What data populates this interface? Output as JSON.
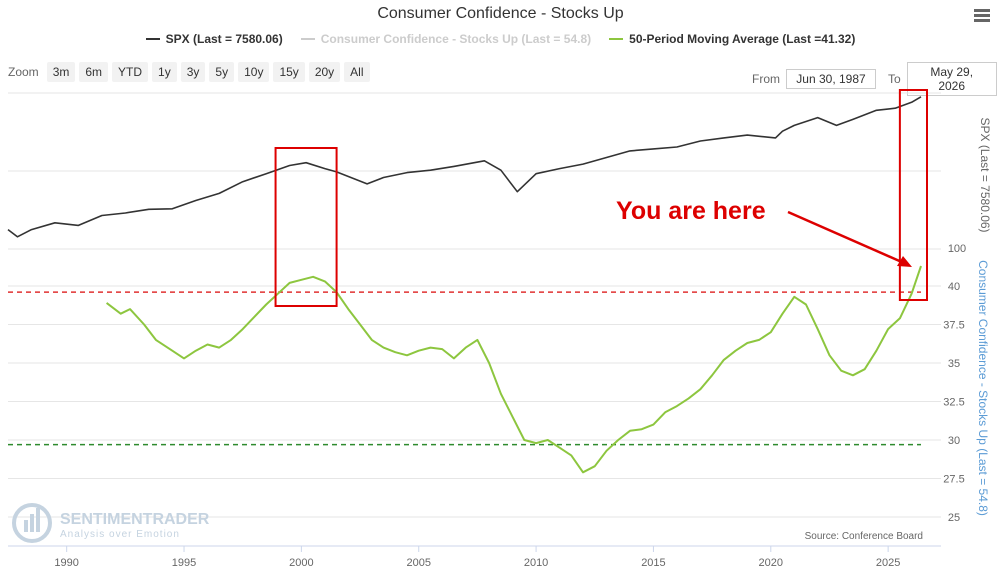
{
  "title": "Consumer Confidence - Stocks Up",
  "menu_icon": "hamburger-menu-icon",
  "legend": [
    {
      "label": "SPX (Last = 7580.06)",
      "color": "#333333",
      "visible": true
    },
    {
      "label": "Consumer Confidence - Stocks Up (Last = 54.8)",
      "color": "#cccccc",
      "visible": false
    },
    {
      "label": "50-Period Moving Average (Last =41.32)",
      "color": "#8dc63f",
      "visible": true
    }
  ],
  "zoom": {
    "label": "Zoom",
    "buttons": [
      "3m",
      "6m",
      "YTD",
      "1y",
      "3y",
      "5y",
      "10y",
      "15y",
      "20y",
      "All"
    ]
  },
  "range": {
    "from_label": "From",
    "from_value": "Jun 30, 1987",
    "to_label": "To",
    "to_value": "May 29, 2026"
  },
  "annotation": {
    "text": "You are here",
    "color": "#dd0000"
  },
  "watermark": {
    "name": "SENTIMENTRADER",
    "tagline": "Analysis over Emotion"
  },
  "source": "Source: Conference Board",
  "chart_data": {
    "type": "line",
    "x_axis": {
      "min": 1987.5,
      "max": 2026.4,
      "ticks": [
        "1990",
        "1995",
        "2000",
        "2005",
        "2010",
        "2015",
        "2020",
        "2025"
      ]
    },
    "y_axis_left": {
      "label": "SPX (Last = 7580.06)",
      "ticks": [
        "100"
      ]
    },
    "y_axis_right": {
      "label": "Consumer Confidence - Stocks Up (Last = 54.8)",
      "min": 25,
      "max": 40,
      "ticks": [
        "25",
        "27.5",
        "30",
        "32.5",
        "35",
        "37.5",
        "40"
      ]
    },
    "reference_lines": [
      {
        "value": 39.6,
        "color": "#e03030",
        "style": "dashed"
      },
      {
        "value": 29.7,
        "color": "#2e8b2e",
        "style": "dashed"
      }
    ],
    "series": [
      {
        "name": "SPX (Last = 7580.06)",
        "color": "#333333",
        "x": [
          1987.5,
          1987.9,
          1988.5,
          1989.5,
          1990.5,
          1991.5,
          1992.5,
          1993.5,
          1994.5,
          1995.5,
          1996.5,
          1997.5,
          1998.5,
          1999.5,
          2000.2,
          2001.0,
          2001.5,
          2002.8,
          2003.5,
          2004.5,
          2005.5,
          2006.5,
          2007.8,
          2008.5,
          2009.2,
          2010.0,
          2011.0,
          2012.0,
          2013.0,
          2014.0,
          2015.0,
          2016.0,
          2017.0,
          2018.0,
          2019.0,
          2020.2,
          2020.5,
          2021.0,
          2022.0,
          2022.8,
          2023.5,
          2024.5,
          2025.3,
          2026.0,
          2026.4
        ],
        "y": [
          270,
          225,
          270,
          320,
          300,
          385,
          410,
          450,
          455,
          560,
          670,
          900,
          1100,
          1350,
          1450,
          1250,
          1150,
          850,
          1000,
          1130,
          1200,
          1320,
          1520,
          1200,
          700,
          1100,
          1250,
          1400,
          1650,
          1950,
          2050,
          2150,
          2500,
          2700,
          2900,
          2700,
          3200,
          3700,
          4500,
          3700,
          4300,
          5400,
          5700,
          6600,
          7580
        ]
      },
      {
        "name": "50-Period Moving Average (Last =41.32)",
        "color": "#8dc63f",
        "x": [
          1991.7,
          1992.3,
          1992.7,
          1993.3,
          1993.8,
          1994.5,
          1995.0,
          1995.5,
          1996.0,
          1996.5,
          1997.0,
          1997.5,
          1998.0,
          1998.5,
          1999.0,
          1999.5,
          2000.0,
          2000.5,
          2001.0,
          2001.5,
          2002.0,
          2002.5,
          2003.0,
          2003.5,
          2004.0,
          2004.5,
          2005.0,
          2005.5,
          2006.0,
          2006.5,
          2007.0,
          2007.5,
          2008.0,
          2008.5,
          2009.0,
          2009.5,
          2010.0,
          2010.5,
          2011.0,
          2011.5,
          2012.0,
          2012.5,
          2013.0,
          2013.5,
          2014.0,
          2014.5,
          2015.0,
          2015.5,
          2016.0,
          2016.5,
          2017.0,
          2017.5,
          2018.0,
          2018.5,
          2019.0,
          2019.5,
          2020.0,
          2020.5,
          2021.0,
          2021.5,
          2022.0,
          2022.5,
          2023.0,
          2023.5,
          2024.0,
          2024.5,
          2025.0,
          2025.5,
          2026.0,
          2026.4
        ],
        "y": [
          38.9,
          38.2,
          38.5,
          37.5,
          36.5,
          35.8,
          35.3,
          35.8,
          36.2,
          36.0,
          36.5,
          37.2,
          38.0,
          38.8,
          39.5,
          40.2,
          40.4,
          40.6,
          40.3,
          39.6,
          38.5,
          37.5,
          36.5,
          36.0,
          35.7,
          35.5,
          35.8,
          36.0,
          35.9,
          35.3,
          36.0,
          36.5,
          35.0,
          33.0,
          31.5,
          30.0,
          29.8,
          30.0,
          29.5,
          29.0,
          27.9,
          28.3,
          29.3,
          30.0,
          30.6,
          30.7,
          31.0,
          31.8,
          32.2,
          32.7,
          33.3,
          34.2,
          35.2,
          35.8,
          36.3,
          36.5,
          37.0,
          38.2,
          39.3,
          38.8,
          37.2,
          35.5,
          34.5,
          34.2,
          34.6,
          35.8,
          37.2,
          37.9,
          39.5,
          41.3
        ]
      }
    ],
    "highlight_boxes": [
      {
        "x0": 1998.9,
        "x1": 2001.5
      },
      {
        "x0": 2025.5,
        "x1": 2026.4
      }
    ],
    "grid": true
  }
}
